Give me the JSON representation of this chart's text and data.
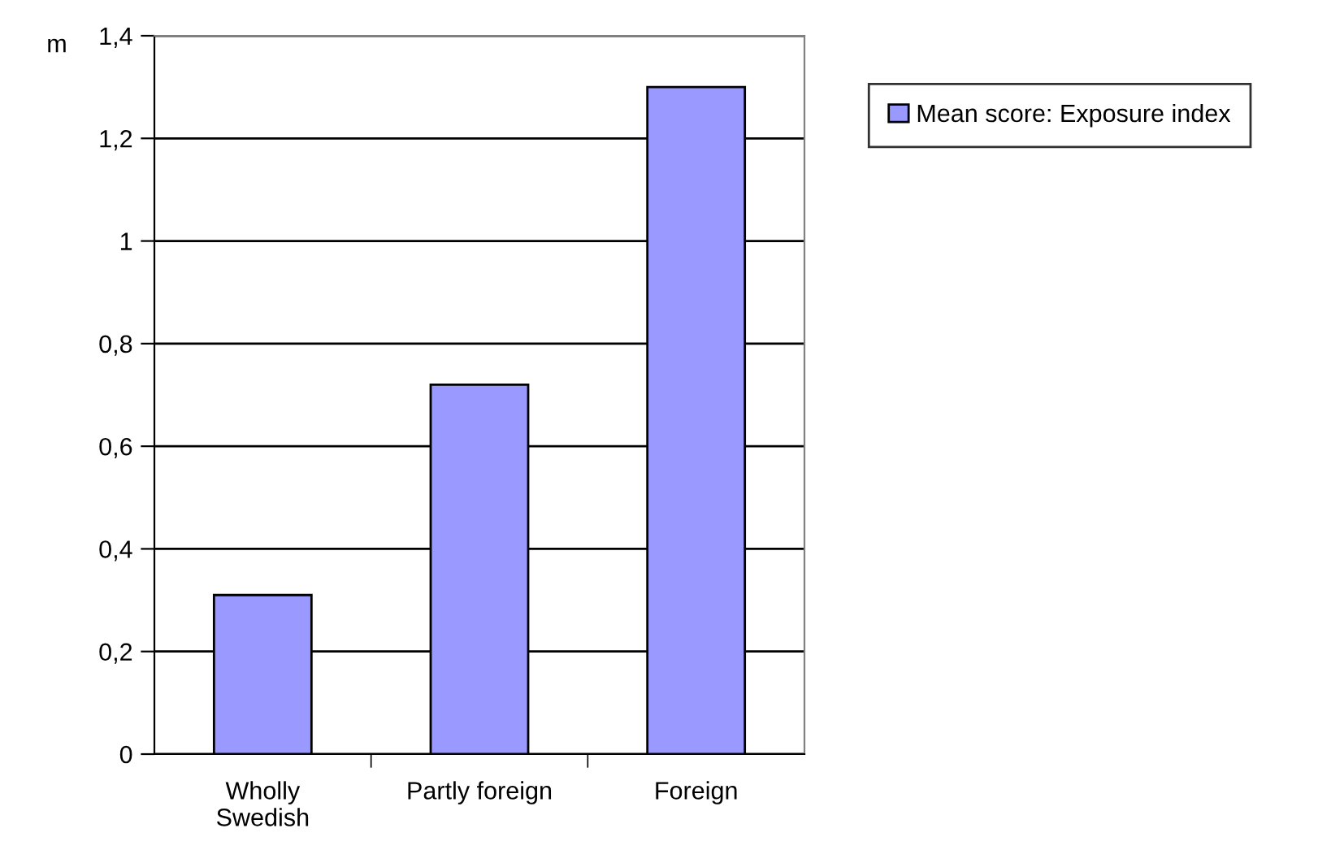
{
  "chart_data": {
    "type": "bar",
    "ylabel": "m",
    "categories": [
      "Wholly\nSwedish",
      "Partly foreign",
      "Foreign"
    ],
    "series": [
      {
        "name": "Mean score: Exposure index",
        "color": "#9999ff",
        "values": [
          0.31,
          0.72,
          1.3
        ]
      }
    ],
    "ylim": [
      0,
      1.4
    ],
    "yticks": [
      0,
      {
        "value": 0.2,
        "label": "0,2"
      },
      {
        "value": 0.4,
        "label": "0,4"
      },
      {
        "value": 0.6,
        "label": "0,6"
      },
      {
        "value": 0.8,
        "label": "0,8"
      },
      1,
      {
        "value": 1.2,
        "label": "1,2"
      },
      {
        "value": 1.4,
        "label": "1,4"
      }
    ],
    "grid": "y",
    "legend": "top right"
  }
}
